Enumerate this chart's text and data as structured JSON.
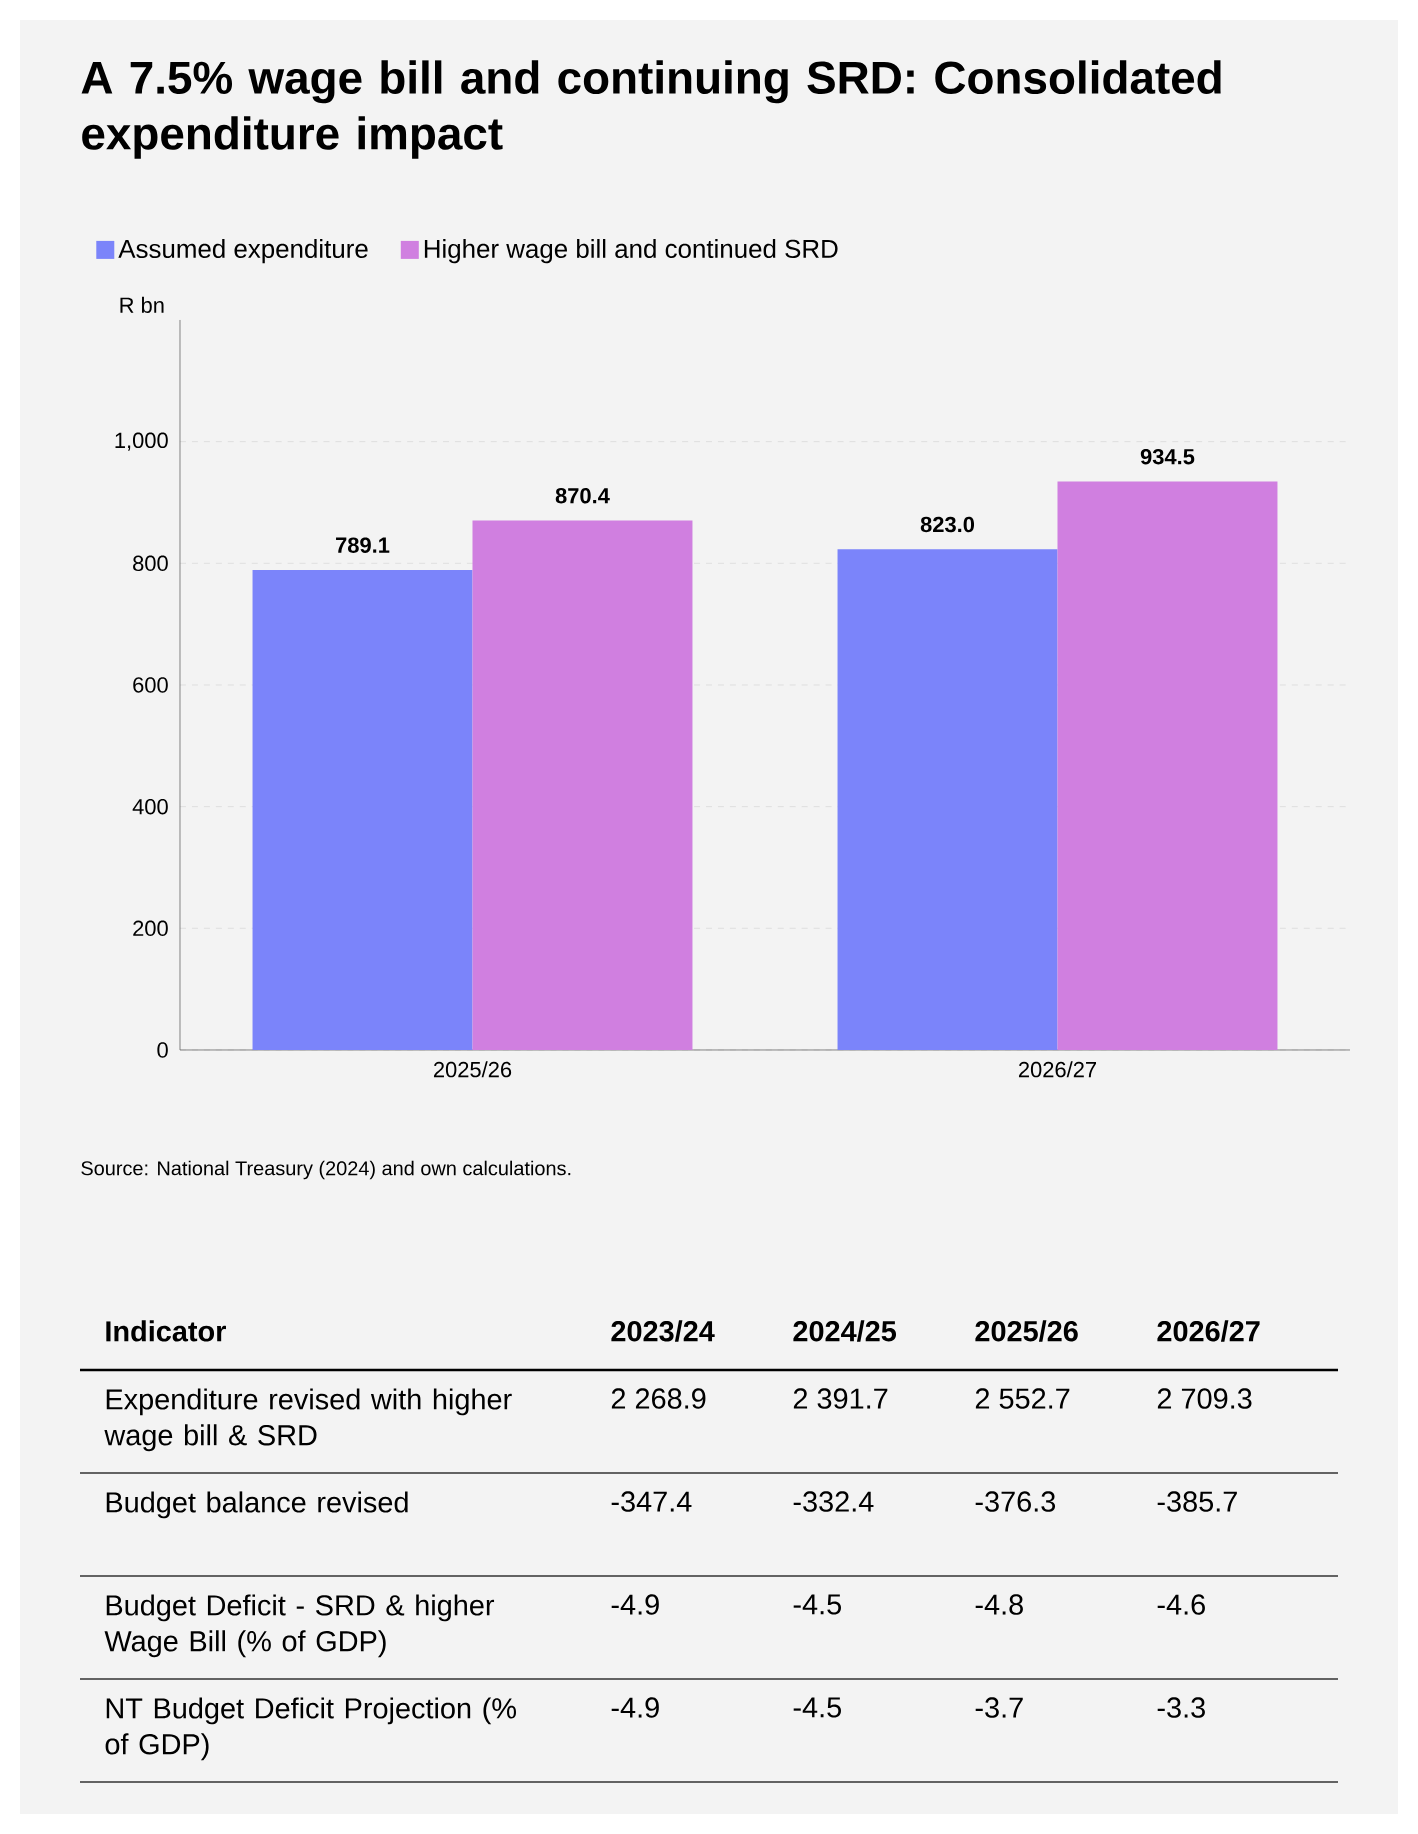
{
  "chart_data": [
    {
      "type": "bar",
      "title": "A 7.5% wage bill and continuing SRD: Consolidated expenditure impact",
      "ylabel": "R bn",
      "categories": [
        "2025/26",
        "2026/27"
      ],
      "series": [
        {
          "name": "Assumed expenditure",
          "color": "#7b84fa",
          "values": [
            789.1,
            823.0
          ],
          "value_labels": [
            "789.1",
            "823.0"
          ]
        },
        {
          "name": "Higher wage bill and continued SRD",
          "color": "#d07fe0",
          "values": [
            870.4,
            934.5
          ],
          "value_labels": [
            "870.4",
            "934.5"
          ]
        }
      ],
      "ylim": [
        0,
        1200
      ],
      "yticks": [
        0,
        200,
        400,
        600,
        800,
        {
          "value": 1000,
          "label": "1,000"
        }
      ],
      "grid": "y",
      "legend": "top",
      "annotations": [
        "Source: National Treasury (2024) and own calculations."
      ]
    },
    {
      "type": "other",
      "ylabel": "Indicator",
      "categories": [
        "2023/24",
        "2024/25",
        "2025/26",
        "2026/27"
      ],
      "y_categories": [
        "Expenditure revised with higher wage bill & SRD",
        "Budget balance revised",
        "Budget Deficit - SRD & higher Wage Bill (% of GDP)",
        "NT Budget Deficit Projection (% of GDP)"
      ],
      "cell_labels": [
        [
          "2 268.9",
          "2 391.7",
          "2 552.7",
          "2 709.3"
        ],
        [
          "-347.4",
          "-332.4",
          "-376.3",
          "-385.7"
        ],
        [
          "-4.9",
          "-4.5",
          "-4.8",
          "-4.6"
        ],
        [
          "-4.9",
          "-4.5",
          "-3.7",
          "-3.3"
        ]
      ]
    }
  ]
}
